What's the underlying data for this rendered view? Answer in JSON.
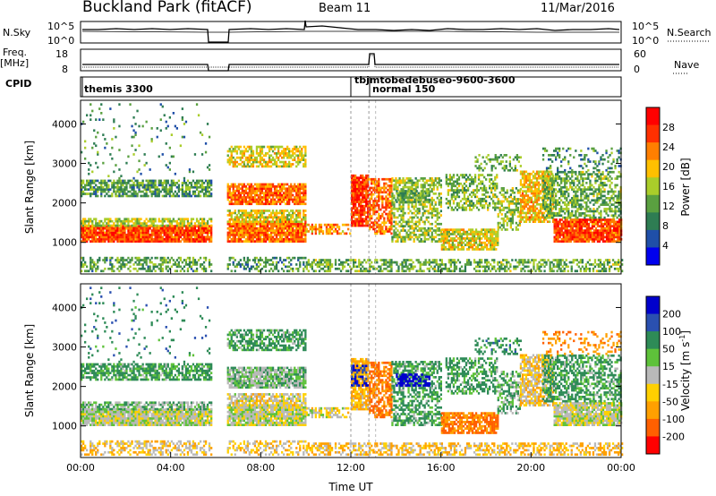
{
  "header": {
    "station": "Buckland Park (fitACF)",
    "beam": "Beam 11",
    "date": "11/Mar/2016"
  },
  "summary": {
    "nsky_label": "N.Sky",
    "nsearch_label": "N.Search",
    "noise_ticks": [
      "10^5",
      "10^0"
    ],
    "freq_label_1": "Freq.",
    "freq_label_2": "[MHz]",
    "freq_ticks": [
      "18",
      "8"
    ],
    "nave_label": "Nave",
    "nave_ticks": [
      "60",
      "0"
    ],
    "cpid_label": "CPID",
    "cpid_entries": [
      "themis 3300",
      "tbjmtobedebuseo-9600-3600",
      "normal 150"
    ]
  },
  "colors": {
    "power_scale": [
      "#0000ee",
      "#1f4fa8",
      "#2e7d53",
      "#5aa040",
      "#aacd2a",
      "#ffc000",
      "#ff7f00",
      "#ff3000",
      "#ff0000"
    ],
    "velocity_scale": [
      "#0000cc",
      "#2a50b0",
      "#2e8b57",
      "#5ec23a",
      "#b9b9b9",
      "#ffd000",
      "#ffa000",
      "#ff6000",
      "#ff0000"
    ]
  },
  "chart_data": [
    {
      "type": "heatmap",
      "name": "power",
      "ylabel": "Slant Range [km]",
      "yticks": [
        1000,
        2000,
        3000,
        4000
      ],
      "ylim": [
        200,
        4600
      ],
      "xlim": [
        0,
        24
      ],
      "colorbar_label": "Power [dB]",
      "colorbar_ticks": [
        4,
        8,
        12,
        16,
        20,
        24,
        28
      ],
      "colorbar_range": [
        0,
        32
      ],
      "data_gap_hours": [
        5.8,
        6.5
      ]
    },
    {
      "type": "heatmap",
      "name": "velocity",
      "ylabel": "Slant Range [km]",
      "yticks": [
        1000,
        2000,
        3000,
        4000
      ],
      "ylim": [
        200,
        4600
      ],
      "xlim": [
        0,
        24
      ],
      "xlabel": "Time UT",
      "xticks": [
        "00:00",
        "04:00",
        "08:00",
        "12:00",
        "16:00",
        "20:00",
        "00:00"
      ],
      "colorbar_label": "Velocity [m s",
      "colorbar_label_sup": "-1",
      "colorbar_label_end": "]",
      "colorbar_ticks": [
        200,
        100,
        50,
        15,
        -15,
        -50,
        -100,
        -200
      ]
    }
  ]
}
